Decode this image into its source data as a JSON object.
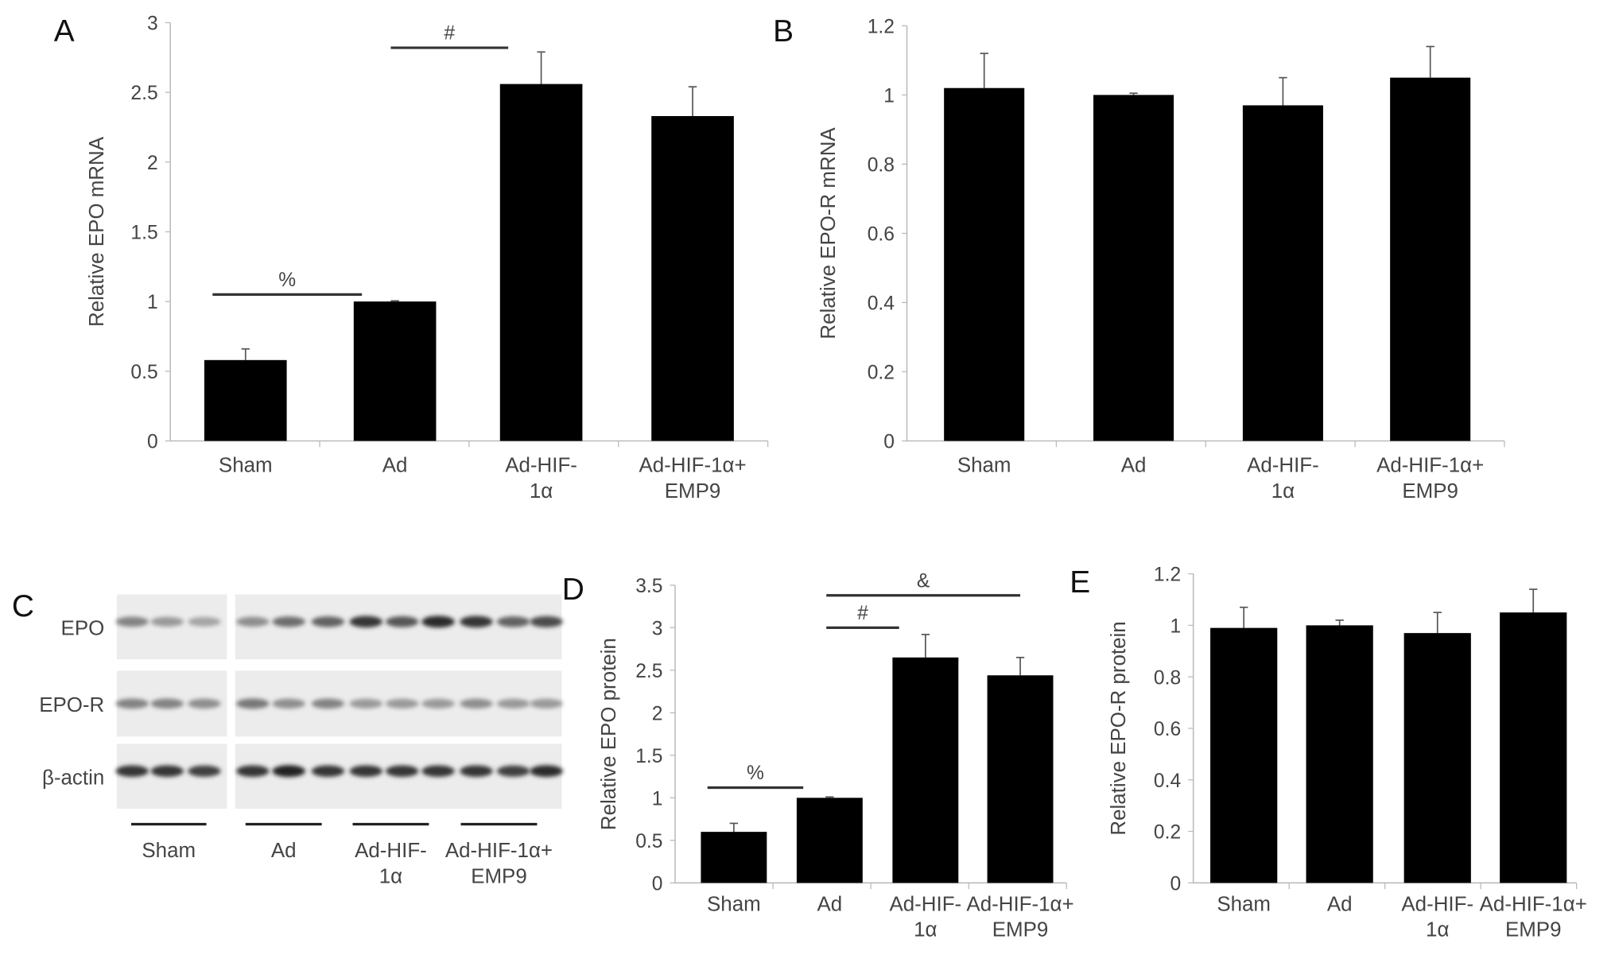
{
  "chart_data": [
    {
      "panel": "A",
      "type": "bar",
      "categories": [
        [
          "Sham"
        ],
        [
          "Ad"
        ],
        [
          "Ad-HIF-",
          "1α"
        ],
        [
          "Ad-HIF-1α+",
          "EMP9"
        ]
      ],
      "values": [
        0.58,
        1.0,
        2.56,
        2.33
      ],
      "errors": [
        0.08,
        0.005,
        0.23,
        0.21
      ],
      "ylabel": "Relative EPO mRNA",
      "ylim": [
        0,
        3
      ],
      "yticks": [
        "0",
        "0.5",
        "1",
        "1.5",
        "2",
        "2.5",
        "3"
      ],
      "ystep": 0.5,
      "significance": [
        {
          "symbol": "%",
          "from": 0,
          "to": 1,
          "y": 1.05
        },
        {
          "symbol": "#",
          "from": 1,
          "to": 2,
          "y": 2.82
        }
      ]
    },
    {
      "panel": "B",
      "type": "bar",
      "categories": [
        [
          "Sham"
        ],
        [
          "Ad"
        ],
        [
          "Ad-HIF-",
          "1α"
        ],
        [
          "Ad-HIF-1α+",
          "EMP9"
        ]
      ],
      "values": [
        1.02,
        1.0,
        0.97,
        1.05
      ],
      "errors": [
        0.1,
        0.005,
        0.08,
        0.09
      ],
      "ylabel": "Relative EPO-R mRNA",
      "ylim": [
        0,
        1.2
      ],
      "yticks": [
        "0",
        "0.2",
        "0.4",
        "0.6",
        "0.8",
        "1",
        "1.2"
      ],
      "ystep": 0.2,
      "significance": []
    },
    {
      "panel": "D",
      "type": "bar",
      "categories": [
        [
          "Sham"
        ],
        [
          "Ad"
        ],
        [
          "Ad-HIF-",
          "1α"
        ],
        [
          "Ad-HIF-1α+",
          "EMP9"
        ]
      ],
      "values": [
        0.6,
        1.0,
        2.65,
        2.44
      ],
      "errors": [
        0.1,
        0.01,
        0.27,
        0.21
      ],
      "ylabel": "Relative EPO protein",
      "ylim": [
        0,
        3.5
      ],
      "yticks": [
        "0",
        "0.5",
        "1",
        "1.5",
        "2",
        "2.5",
        "3",
        "3.5"
      ],
      "ystep": 0.5,
      "significance": [
        {
          "symbol": "%",
          "from": 0,
          "to": 1,
          "y": 1.12
        },
        {
          "symbol": "#",
          "from": 1,
          "to": 2,
          "y": 3.0
        },
        {
          "symbol": "&",
          "from": 1,
          "to": 3,
          "y": 3.38
        }
      ]
    },
    {
      "panel": "E",
      "type": "bar",
      "categories": [
        [
          "Sham"
        ],
        [
          "Ad"
        ],
        [
          "Ad-HIF-",
          "1α"
        ],
        [
          "Ad-HIF-1α+",
          "EMP9"
        ]
      ],
      "values": [
        0.99,
        1.0,
        0.97,
        1.05
      ],
      "errors": [
        0.08,
        0.02,
        0.08,
        0.09
      ],
      "ylabel": "Relative EPO-R protein",
      "ylim": [
        0,
        1.2
      ],
      "yticks": [
        "0",
        "0.2",
        "0.4",
        "0.6",
        "0.8",
        "1",
        "1.2"
      ],
      "ystep": 0.2,
      "significance": []
    }
  ],
  "blot": {
    "panel": "C",
    "rows": [
      "EPO",
      "EPO-R",
      "β-actin"
    ],
    "groups": [
      [
        "Sham"
      ],
      [
        "Ad"
      ],
      [
        "Ad-HIF-",
        "1α"
      ],
      [
        "Ad-HIF-1α+",
        "EMP9"
      ]
    ],
    "band_intensity": [
      [
        0.45,
        0.35,
        0.3,
        0.4,
        0.55,
        0.6,
        0.8,
        0.65,
        0.85,
        0.8,
        0.6,
        0.7
      ],
      [
        0.45,
        0.45,
        0.4,
        0.5,
        0.4,
        0.45,
        0.35,
        0.35,
        0.35,
        0.4,
        0.35,
        0.35
      ],
      [
        0.8,
        0.8,
        0.75,
        0.8,
        0.9,
        0.8,
        0.8,
        0.8,
        0.8,
        0.8,
        0.75,
        0.85
      ]
    ]
  }
}
